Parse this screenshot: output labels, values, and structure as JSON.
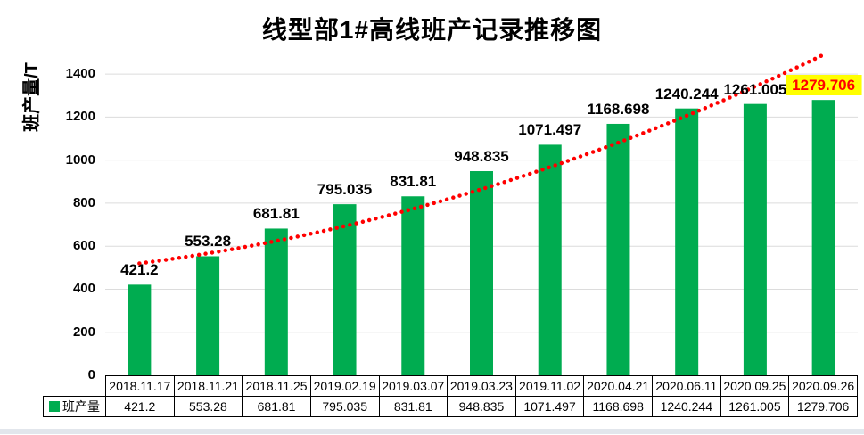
{
  "window": {
    "background": "#ffffff",
    "bottom_strip_color": "#e2e6ec"
  },
  "chart_data": {
    "type": "bar",
    "title": "线型部1#高线班产记录推移图",
    "ylabel": "班产量/T",
    "xlabel": "",
    "categories": [
      "2018.11.17",
      "2018.11.21",
      "2018.11.25",
      "2019.02.19",
      "2019.03.07",
      "2019.03.23",
      "2019.11.02",
      "2020.04.21",
      "2020.06.11",
      "2020.09.25",
      "2020.09.26"
    ],
    "series": [
      {
        "name": "班产量",
        "color": "#00AC50",
        "values": [
          421.2,
          553.28,
          681.81,
          795.035,
          831.81,
          948.835,
          1071.497,
          1168.698,
          1240.244,
          1261.005,
          1279.706
        ],
        "value_labels": [
          "421.2",
          "553.28",
          "681.81",
          "795.035",
          "831.81",
          "948.835",
          "1071.497",
          "1168.698",
          "1240.244",
          "1261.005",
          "1279.706"
        ]
      }
    ],
    "ylim": [
      0,
      1500
    ],
    "yticks": [
      0,
      200,
      400,
      600,
      800,
      1000,
      1200,
      1400
    ],
    "grid": true,
    "gridline_color": "#DCDCDC",
    "legend": {
      "label": "班产量",
      "marker": "square",
      "marker_color": "#00AC50",
      "position": "bottom-table-left"
    },
    "data_table_shown": true,
    "highlight": {
      "index": 10,
      "background": "#FFFF00",
      "text_color": "#FF0000"
    },
    "trendline": {
      "type": "exponential",
      "style": "dotted",
      "color": "#FF0000",
      "values_at": {
        "first_category": 520,
        "middle_category": 865,
        "last_category": 1490
      }
    }
  }
}
